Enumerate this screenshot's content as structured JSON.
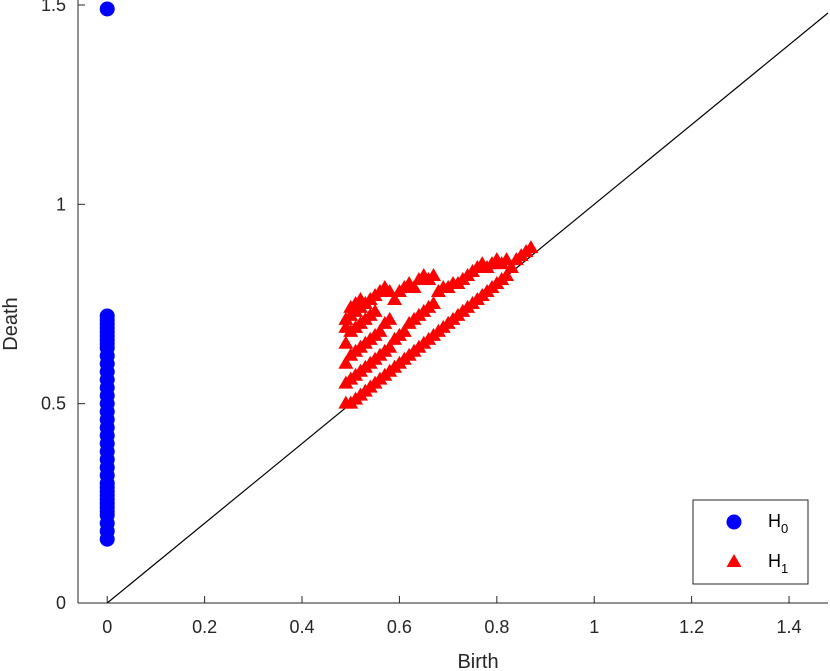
{
  "chart_data": {
    "type": "scatter",
    "title": "",
    "xlabel": "Birth",
    "ylabel": "Death",
    "xlim": [
      -0.06,
      1.48
    ],
    "ylim": [
      0,
      1.5
    ],
    "xticks": [
      0,
      0.2,
      0.4,
      0.6,
      0.8,
      1,
      1.2,
      1.4
    ],
    "xtick_labels": [
      "0",
      "0.2",
      "0.4",
      "0.6",
      "0.8",
      "1",
      "1.2",
      "1.4"
    ],
    "yticks": [
      0,
      0.5,
      1,
      1.5
    ],
    "ytick_labels": [
      "0",
      "0.5",
      "1",
      "1.5"
    ],
    "diagonal": {
      "from": [
        0,
        0
      ],
      "to": [
        1.48,
        1.48
      ],
      "color": "#000000"
    },
    "legend": {
      "position": "bottom-right"
    },
    "series": [
      {
        "name": "H",
        "name_subscript": "0",
        "marker": "circle",
        "color": "#0000ff",
        "x": [
          0,
          0,
          0,
          0,
          0,
          0,
          0,
          0,
          0,
          0,
          0,
          0,
          0,
          0,
          0,
          0,
          0,
          0,
          0,
          0,
          0,
          0,
          0,
          0,
          0,
          0,
          0,
          0,
          0,
          0,
          0,
          0,
          0,
          0,
          0,
          0,
          0,
          0
        ],
        "y": [
          1.49,
          0.72,
          0.71,
          0.7,
          0.69,
          0.68,
          0.67,
          0.66,
          0.65,
          0.64,
          0.62,
          0.6,
          0.58,
          0.56,
          0.54,
          0.52,
          0.5,
          0.48,
          0.46,
          0.44,
          0.42,
          0.4,
          0.38,
          0.36,
          0.34,
          0.32,
          0.3,
          0.29,
          0.28,
          0.27,
          0.26,
          0.25,
          0.24,
          0.23,
          0.22,
          0.2,
          0.18,
          0.16
        ]
      },
      {
        "name": "H",
        "name_subscript": "1",
        "marker": "triangle",
        "color": "#ff0000",
        "x": [
          0.49,
          0.49,
          0.49,
          0.49,
          0.49,
          0.49,
          0.5,
          0.5,
          0.5,
          0.5,
          0.5,
          0.5,
          0.51,
          0.51,
          0.51,
          0.51,
          0.51,
          0.51,
          0.52,
          0.52,
          0.52,
          0.52,
          0.52,
          0.52,
          0.53,
          0.53,
          0.53,
          0.53,
          0.53,
          0.54,
          0.54,
          0.54,
          0.54,
          0.54,
          0.55,
          0.55,
          0.55,
          0.55,
          0.55,
          0.56,
          0.56,
          0.56,
          0.56,
          0.57,
          0.57,
          0.57,
          0.57,
          0.58,
          0.58,
          0.58,
          0.58,
          0.59,
          0.59,
          0.59,
          0.6,
          0.6,
          0.6,
          0.61,
          0.61,
          0.61,
          0.62,
          0.62,
          0.62,
          0.63,
          0.63,
          0.63,
          0.64,
          0.64,
          0.64,
          0.65,
          0.65,
          0.65,
          0.66,
          0.66,
          0.66,
          0.67,
          0.67,
          0.67,
          0.68,
          0.68,
          0.69,
          0.69,
          0.7,
          0.7,
          0.71,
          0.71,
          0.72,
          0.72,
          0.73,
          0.73,
          0.74,
          0.74,
          0.75,
          0.75,
          0.76,
          0.76,
          0.77,
          0.77,
          0.78,
          0.78,
          0.79,
          0.79,
          0.8,
          0.8,
          0.81,
          0.81,
          0.82,
          0.82,
          0.83,
          0.84,
          0.85,
          0.86,
          0.87
        ],
        "y": [
          0.5,
          0.55,
          0.6,
          0.65,
          0.69,
          0.71,
          0.5,
          0.56,
          0.62,
          0.68,
          0.72,
          0.74,
          0.51,
          0.57,
          0.63,
          0.69,
          0.73,
          0.75,
          0.52,
          0.58,
          0.64,
          0.7,
          0.74,
          0.76,
          0.53,
          0.59,
          0.65,
          0.71,
          0.75,
          0.54,
          0.6,
          0.66,
          0.72,
          0.76,
          0.55,
          0.61,
          0.67,
          0.73,
          0.77,
          0.56,
          0.62,
          0.68,
          0.78,
          0.57,
          0.63,
          0.7,
          0.79,
          0.58,
          0.64,
          0.71,
          0.78,
          0.59,
          0.66,
          0.76,
          0.6,
          0.67,
          0.78,
          0.61,
          0.68,
          0.79,
          0.62,
          0.7,
          0.8,
          0.63,
          0.71,
          0.79,
          0.64,
          0.72,
          0.81,
          0.65,
          0.73,
          0.82,
          0.66,
          0.74,
          0.81,
          0.67,
          0.75,
          0.82,
          0.68,
          0.78,
          0.69,
          0.79,
          0.7,
          0.79,
          0.71,
          0.8,
          0.72,
          0.8,
          0.73,
          0.81,
          0.74,
          0.82,
          0.75,
          0.83,
          0.76,
          0.84,
          0.77,
          0.85,
          0.78,
          0.84,
          0.79,
          0.85,
          0.8,
          0.86,
          0.81,
          0.85,
          0.82,
          0.86,
          0.84,
          0.86,
          0.87,
          0.88,
          0.89
        ]
      }
    ]
  }
}
